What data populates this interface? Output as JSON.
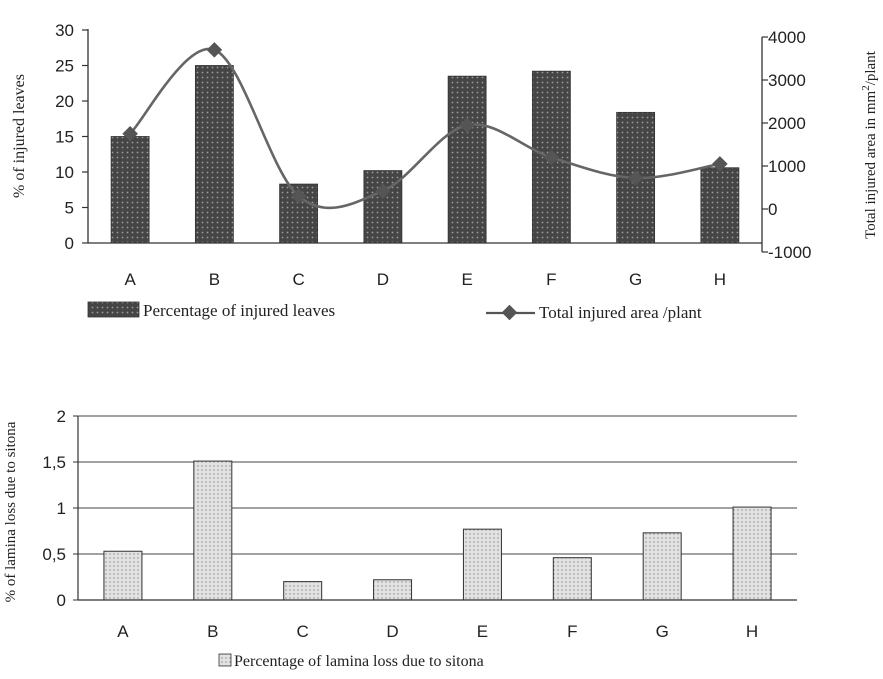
{
  "chart_data": [
    {
      "type": "bar",
      "categories": [
        "A",
        "B",
        "C",
        "D",
        "E",
        "F",
        "G",
        "H"
      ],
      "series": [
        {
          "name": "Percentage of injured leaves",
          "kind": "bar",
          "axis": "left",
          "values": [
            15,
            25,
            8.3,
            10.2,
            23.5,
            24.2,
            18.4,
            10.6
          ]
        },
        {
          "name": "Total injured area /plant",
          "kind": "line",
          "axis": "right",
          "values": [
            1750,
            3700,
            300,
            420,
            1950,
            1200,
            720,
            1050
          ]
        }
      ],
      "ylabel": "% of injured leaves",
      "ylim": [
        0,
        30
      ],
      "yticks": [
        "0",
        "5",
        "10",
        "15",
        "20",
        "25",
        "30"
      ],
      "y2label_main": "Total injured area in mm",
      "y2label_sup": "2",
      "y2label_tail": "/plant",
      "y2lim": [
        -1000,
        4000
      ],
      "y2ticks": [
        "-1000",
        "0",
        "1000",
        "2000",
        "3000",
        "4000"
      ],
      "legend_position": "bottom"
    },
    {
      "type": "bar",
      "categories": [
        "A",
        "B",
        "C",
        "D",
        "E",
        "F",
        "G",
        "H"
      ],
      "series": [
        {
          "name": "Percentage of lamina loss due to sitona",
          "values": [
            0.53,
            1.51,
            0.2,
            0.22,
            0.77,
            0.46,
            0.73,
            1.01
          ]
        }
      ],
      "ylabel": "% of lamina loss due to sitona",
      "ylim": [
        0,
        2
      ],
      "yticks": [
        "0",
        "0,5",
        "1",
        "1,5",
        "2"
      ],
      "grid": true,
      "legend_position": "bottom"
    }
  ],
  "colors": {
    "bar_dark": "#4a4a4a",
    "bar_light": "#dcdcdc",
    "line": "#666666",
    "marker": "#555555",
    "axis": "#333333"
  }
}
